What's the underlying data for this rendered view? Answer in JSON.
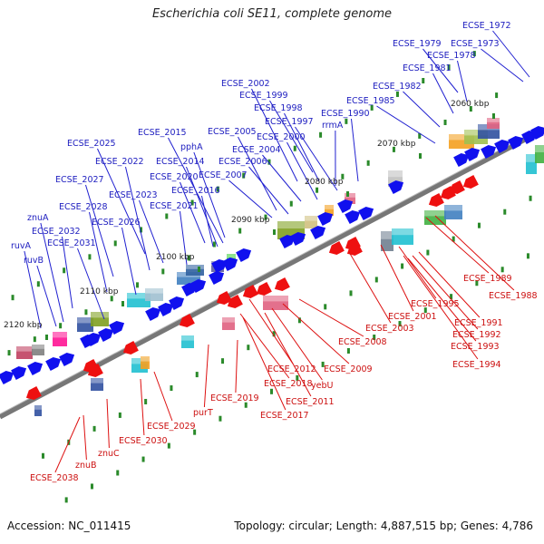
{
  "title": "Escherichia coli SE11, complete genome",
  "footer": {
    "accession": "Accession: NC_011415",
    "topology": "Topology: circular; Length: 4,887,515 bp; Genes: 4,786"
  },
  "colors": {
    "forward_label": "#2020c0",
    "reverse_label": "#cc1010",
    "forward_gene": "#1010ee",
    "reverse_gene": "#ee1010",
    "tick": "#2a8a2a",
    "axis": "#777777"
  },
  "kbp_ticks": [
    "2060 kbp",
    "2070 kbp",
    "2080 kbp",
    "2090 kbp",
    "2100 kbp",
    "2110 kbp",
    "2120 kbp"
  ],
  "forward_genes": [
    "ECSE_1972",
    "ECSE_1973",
    "ECSE_1979",
    "ECSE_1978",
    "ECSE_1981",
    "ECSE_1982",
    "ECSE_1985",
    "ECSE_1990",
    "rrmA",
    "ECSE_2002",
    "ECSE_1999",
    "ECSE_1998",
    "ECSE_1997",
    "ECSE_2000",
    "ECSE_2005",
    "ECSE_2004",
    "ECSE_2006",
    "ECSE_2007",
    "ECSE_2015",
    "pphA",
    "ECSE_2014",
    "ECSE_2025",
    "ECSE_2022",
    "ECSE_2020",
    "ECSE_2016",
    "ECSE_2027",
    "ECSE_2023",
    "ECSE_2021",
    "ECSE_2028",
    "ECSE_2026",
    "znuA",
    "ECSE_2032",
    "ECSE_2031",
    "ruvA",
    "ruvB"
  ],
  "reverse_genes": [
    "ECSE_1989",
    "ECSE_1988",
    "ECSE_1995",
    "ECSE_2001",
    "ECSE_1991",
    "ECSE_1992",
    "ECSE_1993",
    "ECSE_1994",
    "ECSE_2003",
    "ECSE_2008",
    "ECSE_2009",
    "ECSE_2012",
    "yebU",
    "ECSE_2018",
    "ECSE_2011",
    "ECSE_2017",
    "ECSE_2019",
    "purT",
    "ECSE_2029",
    "ECSE_2030",
    "znuC",
    "znuB",
    "ECSE_2038"
  ]
}
